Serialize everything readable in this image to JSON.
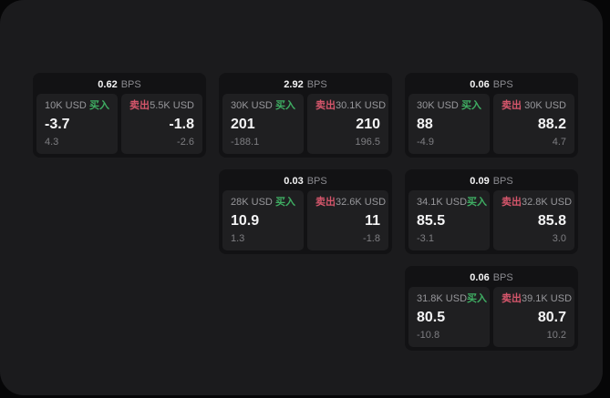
{
  "colors": {
    "buy_green": "#3fae63",
    "sell_red": "#d5566b"
  },
  "cards": [
    {
      "bps_value": "0.62",
      "bps_unit": "BPS",
      "buy": {
        "amount": "10K USD",
        "side_label": "买入",
        "price": "-3.7",
        "delta": "4.3"
      },
      "sell": {
        "side_label": "卖出",
        "amount": "5.5K USD",
        "price": "-1.8",
        "delta": "-2.6"
      }
    },
    {
      "bps_value": "2.92",
      "bps_unit": "BPS",
      "buy": {
        "amount": "30K USD",
        "side_label": "买入",
        "price": "201",
        "delta": "-188.1"
      },
      "sell": {
        "side_label": "卖出",
        "amount": "30.1K USD",
        "price": "210",
        "delta": "196.5"
      }
    },
    {
      "bps_value": "0.06",
      "bps_unit": "BPS",
      "buy": {
        "amount": "30K USD",
        "side_label": "买入",
        "price": "88",
        "delta": "-4.9"
      },
      "sell": {
        "side_label": "卖出",
        "amount": "30K USD",
        "price": "88.2",
        "delta": "4.7"
      }
    },
    {
      "bps_value": "0.03",
      "bps_unit": "BPS",
      "buy": {
        "amount": "28K USD",
        "side_label": "买入",
        "price": "10.9",
        "delta": "1.3"
      },
      "sell": {
        "side_label": "卖出",
        "amount": "32.6K USD",
        "price": "11",
        "delta": "-1.8"
      }
    },
    {
      "bps_value": "0.09",
      "bps_unit": "BPS",
      "buy": {
        "amount": "34.1K USD",
        "side_label": "买入",
        "price": "85.5",
        "delta": "-3.1"
      },
      "sell": {
        "side_label": "卖出",
        "amount": "32.8K USD",
        "price": "85.8",
        "delta": "3.0"
      }
    },
    {
      "bps_value": "0.06",
      "bps_unit": "BPS",
      "buy": {
        "amount": "31.8K USD",
        "side_label": "买入",
        "price": "80.5",
        "delta": "-10.8"
      },
      "sell": {
        "side_label": "卖出",
        "amount": "39.1K USD",
        "price": "80.7",
        "delta": "10.2"
      }
    }
  ]
}
